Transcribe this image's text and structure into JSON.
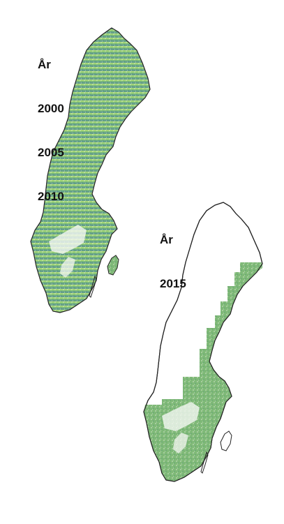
{
  "maps": [
    {
      "name": "coverage-2000-2010",
      "labels": [
        "År",
        "2000",
        "2005",
        "2010"
      ]
    },
    {
      "name": "coverage-2015",
      "labels": [
        "År",
        "2015"
      ]
    }
  ],
  "colors": {
    "outline": "#222222",
    "coverage_light": "#a6d86a",
    "coverage_mid": "#79b778",
    "coverage_dark": "#4f8f86",
    "coverage_white": "#f4f7f2"
  }
}
